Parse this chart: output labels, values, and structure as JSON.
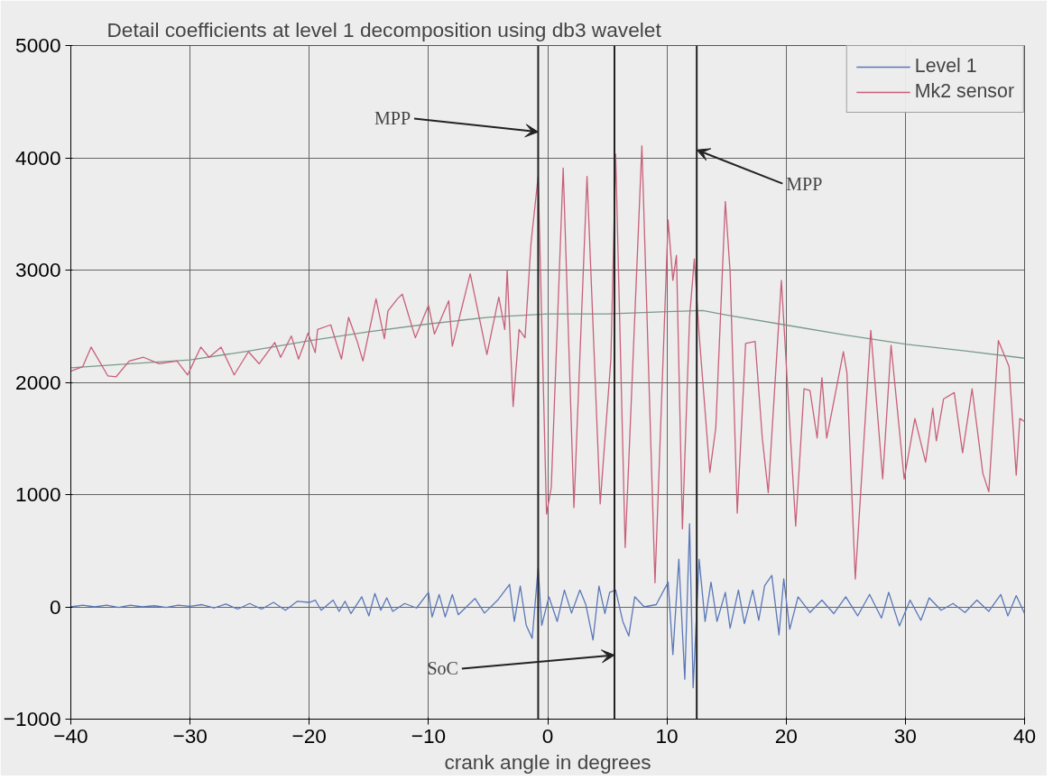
{
  "chart_data": {
    "type": "line",
    "title": "Detail coefficients at level 1 decomposition using db3 wavelet",
    "xlabel": "crank angle in degrees",
    "xlim": [
      -40,
      40
    ],
    "xticks": [
      -40,
      -30,
      -20,
      -10,
      0,
      10,
      20,
      30,
      40
    ],
    "ylim": [
      -1000,
      5000
    ],
    "yticks": [
      -1000,
      0,
      1000,
      2000,
      3000,
      4000,
      5000
    ],
    "grid": true,
    "legend": "top right",
    "line_style": "solid",
    "series": [
      {
        "name": "Level 1",
        "color": "#5a78b8",
        "x": [
          -40,
          -39,
          -38,
          -37,
          -36,
          -35,
          -34,
          -33,
          -32,
          -31,
          -30,
          -29,
          -28,
          -27,
          -26,
          -25,
          -24,
          -23,
          -22,
          -21,
          -20,
          -19.5,
          -19,
          -18,
          -17.5,
          -17,
          -16.5,
          -15.6,
          -15,
          -14.5,
          -14,
          -13.5,
          -13,
          -12,
          -11,
          -10,
          -9.7,
          -9.1,
          -8.6,
          -8.0,
          -7.5,
          -6.1,
          -5.3,
          -4.2,
          -3.2,
          -2.8,
          -2.3,
          -1.8,
          -1.3,
          -0.8,
          -0.5,
          0.1,
          0.8,
          1.4,
          2.0,
          2.7,
          3.2,
          3.8,
          4.3,
          4.8,
          5.2,
          5.7,
          6.3,
          6.8,
          7.3,
          8.1,
          9.1,
          10.1,
          10.5,
          11.0,
          11.5,
          11.9,
          12.2,
          12.7,
          13.2,
          13.7,
          14.2,
          14.9,
          15.3,
          16.0,
          16.5,
          17.2,
          17.7,
          18.2,
          18.8,
          19.4,
          19.8,
          20.3,
          21,
          22,
          23,
          24,
          25,
          26,
          27,
          28,
          28.6,
          29.5,
          30.4,
          31.3,
          32,
          33,
          34,
          35,
          36,
          37,
          38,
          38.6,
          39.3,
          40
        ],
        "values": [
          0,
          15,
          0,
          15,
          -5,
          15,
          0,
          10,
          -5,
          15,
          5,
          20,
          -10,
          25,
          -20,
          30,
          -20,
          40,
          -30,
          50,
          40,
          60,
          -30,
          60,
          -40,
          50,
          -60,
          90,
          -80,
          120,
          -30,
          80,
          -40,
          30,
          -10,
          130,
          -90,
          110,
          -90,
          110,
          -70,
          75,
          -55,
          60,
          200,
          -130,
          185,
          -165,
          -280,
          350,
          -165,
          90,
          -130,
          150,
          -55,
          150,
          20,
          -295,
          185,
          -60,
          130,
          150,
          -130,
          -260,
          90,
          0,
          20,
          220,
          -425,
          425,
          -645,
          740,
          -720,
          425,
          -130,
          220,
          -130,
          130,
          -190,
          150,
          -150,
          150,
          -120,
          190,
          280,
          -250,
          250,
          -200,
          90,
          -50,
          60,
          -60,
          90,
          -80,
          110,
          -100,
          130,
          -170,
          60,
          -120,
          80,
          -30,
          30,
          -50,
          60,
          -40,
          110,
          -80,
          100,
          -60
        ]
      },
      {
        "color": "#7a9a8a",
        "x": [
          -40,
          -35,
          -30,
          -25,
          -20,
          -15,
          -10,
          -5,
          0,
          5,
          10,
          13,
          15,
          20,
          25,
          30,
          35,
          40
        ],
        "values": [
          2130,
          2165,
          2200,
          2280,
          2370,
          2450,
          2520,
          2580,
          2610,
          2610,
          2630,
          2640,
          2600,
          2510,
          2420,
          2340,
          2280,
          2215
        ]
      },
      {
        "name": "Mk2 sensor",
        "color": "#c8607a",
        "x": [
          -40,
          -39.0,
          -38.3,
          -36.9,
          -36.2,
          -35.1,
          -33.9,
          -32.6,
          -31.1,
          -30.2,
          -29.1,
          -28.4,
          -27.4,
          -26.3,
          -25.1,
          -24.2,
          -22.9,
          -22.4,
          -21.5,
          -20.9,
          -20.1,
          -19.5,
          -19.3,
          -18.2,
          -17.3,
          -16.7,
          -16.0,
          -15.5,
          -14.4,
          -13.7,
          -13.4,
          -12.6,
          -12.2,
          -11.1,
          -10.0,
          -9.5,
          -8.3,
          -8.0,
          -6.5,
          -5.1,
          -4.1,
          -3.6,
          -3.4,
          -2.9,
          -2.4,
          -1.9,
          -1.4,
          -0.8,
          -0.1,
          0.3,
          1.3,
          2.2,
          3.3,
          4.4,
          5.3,
          5.7,
          6.5,
          7.9,
          9.0,
          10.1,
          10.5,
          10.8,
          11.3,
          11.9,
          12.3,
          12.7,
          13.6,
          14.1,
          14.9,
          15.3,
          15.9,
          16.6,
          17.4,
          18.0,
          18.5,
          19.6,
          20.8,
          21.5,
          22.0,
          22.6,
          23.0,
          23.4,
          24.1,
          24.8,
          25.1,
          25.8,
          27.1,
          28.1,
          28.8,
          29.9,
          30.8,
          31.7,
          32.3,
          32.6,
          33.2,
          34.1,
          34.8,
          35.6,
          36.5,
          37.0,
          37.8,
          38.7,
          39.3,
          39.6,
          40
        ],
        "values": [
          2100,
          2140,
          2314,
          2058,
          2050,
          2190,
          2223,
          2165,
          2190,
          2066,
          2314,
          2223,
          2314,
          2066,
          2273,
          2165,
          2355,
          2223,
          2413,
          2207,
          2438,
          2264,
          2471,
          2512,
          2207,
          2579,
          2372,
          2190,
          2744,
          2388,
          2636,
          2744,
          2785,
          2397,
          2686,
          2430,
          2727,
          2322,
          2967,
          2248,
          2760,
          2471,
          3000,
          1785,
          2471,
          2397,
          3240,
          3835,
          826,
          1066,
          3909,
          884,
          3835,
          917,
          2207,
          4033,
          529,
          4107,
          215,
          3446,
          2909,
          3132,
          694,
          2579,
          3099,
          2430,
          1198,
          1595,
          3612,
          2983,
          835,
          2347,
          2364,
          1504,
          1017,
          2909,
          719,
          1942,
          1926,
          1504,
          2041,
          1504,
          1884,
          2273,
          2083,
          248,
          2463,
          1140,
          2331,
          1140,
          1678,
          1289,
          1769,
          1479,
          1851,
          1909,
          1372,
          1942,
          1190,
          1025,
          2372,
          2140,
          1174,
          1678,
          1650
        ]
      }
    ],
    "ref_lines": [
      {
        "axis": "x",
        "value": -0.8,
        "color": "#222222"
      },
      {
        "axis": "x",
        "value": 5.6,
        "color": "#222222"
      },
      {
        "axis": "x",
        "value": 12.5,
        "color": "#222222"
      }
    ],
    "annotations": [
      {
        "text": "MPP",
        "x": -0.8,
        "y": 4230
      },
      {
        "text": "MPP",
        "x": 12.5,
        "y": 4070
      },
      {
        "text": "SoC",
        "x": 5.6,
        "y": -430
      }
    ]
  }
}
